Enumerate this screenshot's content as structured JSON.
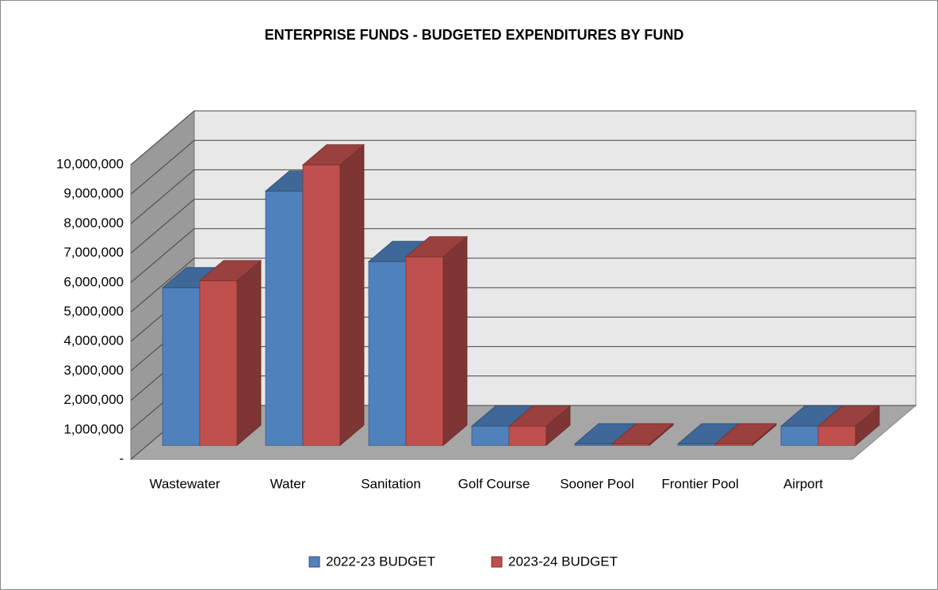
{
  "chart_data": {
    "type": "bar3d",
    "title": "ENTERPRISE FUNDS - BUDGETED EXPENDITURES BY FUND",
    "categories": [
      "Wastewater",
      "Water",
      "Sanitation",
      "Golf Course",
      "Sooner Pool",
      "Frontier Pool",
      "Airport"
    ],
    "series": [
      {
        "name": "2022-23 BUDGET",
        "color": "#4f81bd",
        "values": [
          5350000,
          8630000,
          6240000,
          650000,
          50000,
          50000,
          650000
        ]
      },
      {
        "name": "2023-24 BUDGET",
        "color": "#c0504d",
        "values": [
          5590000,
          9520000,
          6400000,
          650000,
          50000,
          50000,
          650000
        ]
      }
    ],
    "ylim": [
      0,
      10000000
    ],
    "yticks": [
      {
        "value": 0,
        "label": "-"
      },
      {
        "value": 1000000,
        "label": "1,000,000"
      },
      {
        "value": 2000000,
        "label": "2,000,000"
      },
      {
        "value": 3000000,
        "label": "3,000,000"
      },
      {
        "value": 4000000,
        "label": "4,000,000"
      },
      {
        "value": 5000000,
        "label": "5,000,000"
      },
      {
        "value": 6000000,
        "label": "6,000,000"
      },
      {
        "value": 7000000,
        "label": "7,000,000"
      },
      {
        "value": 8000000,
        "label": "8,000,000"
      },
      {
        "value": 9000000,
        "label": "9,000,000"
      },
      {
        "value": 10000000,
        "label": "10,000,000"
      }
    ],
    "grid": true,
    "legend": "bottom"
  }
}
